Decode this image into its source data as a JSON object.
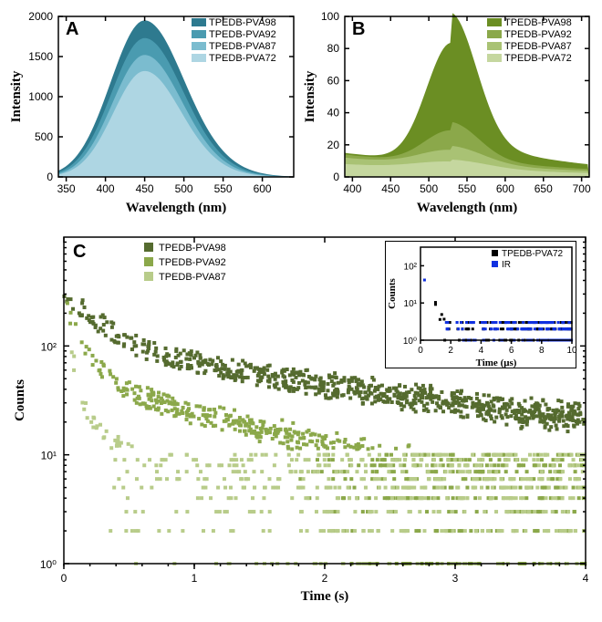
{
  "panelA": {
    "type": "area",
    "label": "A",
    "xlabel": "Wavelength (nm)",
    "ylabel": "Intensity",
    "xlim": [
      340,
      640
    ],
    "ylim": [
      0,
      2000
    ],
    "xticks": [
      350,
      400,
      450,
      500,
      550,
      600
    ],
    "yticks": [
      0,
      500,
      1000,
      1500,
      2000
    ],
    "background_color": "#ffffff",
    "legend": [
      {
        "label": "TPEDB-PVA98",
        "color": "#2e7a8f"
      },
      {
        "label": "TPEDB-PVA92",
        "color": "#4a9bb0"
      },
      {
        "label": "TPEDB-PVA87",
        "color": "#7bbccf"
      },
      {
        "label": "TPEDB-PVA72",
        "color": "#aed6e3"
      }
    ],
    "series": [
      {
        "color": "#2e7a8f",
        "peak_x": 450,
        "peak_y": 1950,
        "width": 75
      },
      {
        "color": "#4a9bb0",
        "peak_x": 450,
        "peak_y": 1730,
        "width": 73
      },
      {
        "color": "#7bbccf",
        "peak_x": 450,
        "peak_y": 1520,
        "width": 71
      },
      {
        "color": "#aed6e3",
        "peak_x": 450,
        "peak_y": 1320,
        "width": 69
      }
    ]
  },
  "panelB": {
    "type": "area",
    "label": "B",
    "xlabel": "Wavelength (nm)",
    "ylabel": "Intensity",
    "xlim": [
      390,
      710
    ],
    "ylim": [
      0,
      100
    ],
    "xticks": [
      400,
      450,
      500,
      550,
      600,
      650,
      700
    ],
    "yticks": [
      0,
      20,
      40,
      60,
      80,
      100
    ],
    "background_color": "#ffffff",
    "legend": [
      {
        "label": "TPEDB-PVA98",
        "color": "#6b8e23"
      },
      {
        "label": "TPEDB-PVA92",
        "color": "#8ba84a"
      },
      {
        "label": "TPEDB-PVA87",
        "color": "#a9c274"
      },
      {
        "label": "TPEDB-PVA72",
        "color": "#c5d79f"
      }
    ],
    "series": [
      {
        "color": "#6b8e23",
        "peak_x": 530,
        "peak_y": 90,
        "width": 55,
        "baseline": 15
      },
      {
        "color": "#8ba84a",
        "peak_x": 530,
        "peak_y": 35,
        "width": 60,
        "baseline": 14
      },
      {
        "color": "#a9c274",
        "peak_x": 530,
        "peak_y": 22,
        "width": 70,
        "baseline": 12
      },
      {
        "color": "#c5d79f",
        "peak_x": 530,
        "peak_y": 13,
        "width": 80,
        "baseline": 8
      }
    ]
  },
  "panelC": {
    "type": "scatter",
    "label": "C",
    "xlabel": "Time (s)",
    "ylabel": "Counts",
    "xlim": [
      0,
      4
    ],
    "ylim_log": [
      0,
      3
    ],
    "xticks": [
      0,
      1,
      2,
      3,
      4
    ],
    "yticks_exp": [
      0,
      1,
      2
    ],
    "ytick_labels": [
      "10⁰",
      "10¹",
      "10²"
    ],
    "legend": [
      {
        "label": "TPEDB-PVA98",
        "color": "#556b2f"
      },
      {
        "label": "TPEDB-PVA92",
        "color": "#8ba84a"
      },
      {
        "label": "TPEDB-PVA87",
        "color": "#b8cc8a"
      }
    ],
    "marker": "square",
    "marker_size": 4,
    "decay_params": [
      {
        "color": "#556b2f",
        "y0_log": 2.5,
        "tau1": 0.25,
        "A1": 0.7,
        "tau2": 2.2,
        "A2": 0.3,
        "floor_log": 0.8,
        "n": 800
      },
      {
        "color": "#8ba84a",
        "y0_log": 2.4,
        "tau1": 0.12,
        "A1": 0.8,
        "tau2": 1.2,
        "A2": 0.2,
        "floor_log": 0.5,
        "n": 700
      },
      {
        "color": "#b8cc8a",
        "y0_log": 2.3,
        "tau1": 0.06,
        "A1": 0.9,
        "tau2": 0.6,
        "A2": 0.1,
        "floor_log": 0.2,
        "n": 600
      }
    ],
    "inset": {
      "xlabel": "Time (μs)",
      "ylabel": "Counts",
      "xlim": [
        0,
        10
      ],
      "ylim_log": [
        0,
        2.5
      ],
      "xticks": [
        0,
        2,
        4,
        6,
        8,
        10
      ],
      "ytick_exp": [
        0,
        1,
        2
      ],
      "ytick_labels": [
        "10⁰",
        "10¹",
        "10²"
      ],
      "legend": [
        {
          "label": "TPEDB-PVA72",
          "color": "#000000"
        },
        {
          "label": "IR",
          "color": "#1030e0"
        }
      ],
      "marker": "square",
      "marker_size": 3,
      "decay_params": [
        {
          "color": "#000000",
          "y0_log": 2.3,
          "tau1": 0.3,
          "floor_log": 0.2,
          "n": 150
        },
        {
          "color": "#1030e0",
          "y0_log": 2.4,
          "tau1": 0.15,
          "floor_log": 0.0,
          "n": 150
        }
      ]
    }
  }
}
